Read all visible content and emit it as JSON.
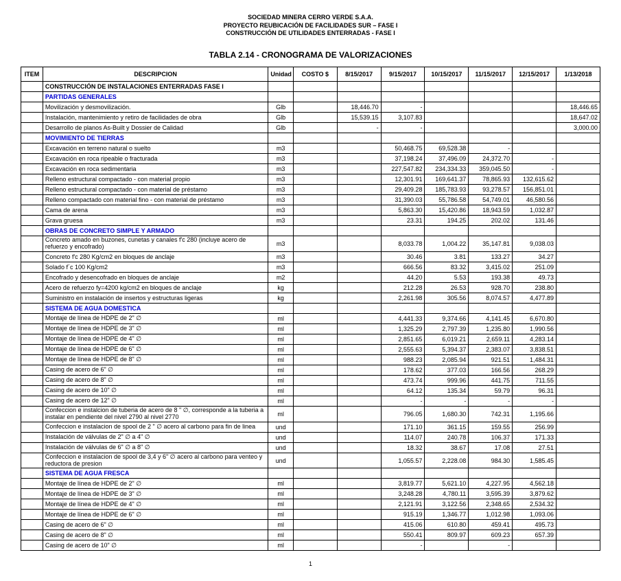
{
  "header": {
    "line1": "SOCIEDAD MINERA CERRO VERDE S.A.A.",
    "line2": "PROYECTO REUBICACIÓN DE FACILIDADES SUR – FASE I",
    "line3": "CONSTRUCCIÓN DE UTILIDADES ENTERRADAS - FASE I"
  },
  "title": "TABLA 2.14 - CRONOGRAMA DE VALORIZACIONES",
  "columns": {
    "item": "ITEM",
    "desc": "DESCRIPCION",
    "unit": "Unidad",
    "cost": "COSTO $",
    "d1": "8/15/2017",
    "d2": "9/15/2017",
    "d3": "10/15/2017",
    "d4": "11/15/2017",
    "d5": "12/15/2017",
    "d6": "1/13/2018"
  },
  "style": {
    "section_color": "#0000d0",
    "border_color": "#000000",
    "font_size_body": 9,
    "font_size_title": 12
  },
  "rows": [
    {
      "type": "bold",
      "desc": "CONSTRUCCIÓN DE INSTALACIONES ENTERRADAS FASE I"
    },
    {
      "type": "section",
      "desc": "PARTIDAS GENERALES"
    },
    {
      "desc": "Movilización y desmovilización.",
      "unit": "Glb",
      "d1": "18,446.70",
      "d2": "-",
      "d6": "18,446.65"
    },
    {
      "desc": "Instalación, mantenimiento y retiro de facilidades de obra",
      "unit": "Glb",
      "d1": "15,539.15",
      "d2": "3,107.83",
      "d6": "18,647.02"
    },
    {
      "desc": "Desarrollo de planos As-Built y Dossier de Calidad",
      "unit": "Glb",
      "d1": "-",
      "d2": "-",
      "d6": "3,000.00"
    },
    {
      "type": "section",
      "desc": "MOVIMIENTO DE TIERRAS"
    },
    {
      "desc": "Excavación en terreno natural o suelto",
      "unit": "m3",
      "d2": "50,468.75",
      "d3": "69,528.38",
      "d4": "-"
    },
    {
      "desc": "Excavación en roca ripeable o fracturada",
      "unit": "m3",
      "d2": "37,198.24",
      "d3": "37,496.09",
      "d4": "24,372.70",
      "d5": "-"
    },
    {
      "desc": "Excavación en roca sedimentaria",
      "unit": "m3",
      "d2": "227,547.82",
      "d3": "234,334.33",
      "d4": "359,045.50",
      "d5": "-"
    },
    {
      "desc": "Relleno estructural compactado - con material propio",
      "unit": "m3",
      "d2": "12,301.91",
      "d3": "169,641.37",
      "d4": "78,865.93",
      "d5": "132,615.62"
    },
    {
      "desc": "Relleno estructural compactado - con material de préstamo",
      "unit": "m3",
      "d2": "29,409.28",
      "d3": "185,783.93",
      "d4": "93,278.57",
      "d5": "156,851.01"
    },
    {
      "desc": "Relleno compactado con material fino - con material de préstamo",
      "unit": "m3",
      "d2": "31,390.03",
      "d3": "55,786.58",
      "d4": "54,749.01",
      "d5": "46,580.56"
    },
    {
      "desc": "Cama de arena",
      "unit": "m3",
      "d2": "5,863.30",
      "d3": "15,420.86",
      "d4": "18,943.59",
      "d5": "1,032.87"
    },
    {
      "desc": "Grava gruesa",
      "unit": "m3",
      "d2": "23.31",
      "d3": "194.25",
      "d4": "202.02",
      "d5": "131.46"
    },
    {
      "type": "section",
      "desc": "OBRAS DE CONCRETO SIMPLE Y ARMADO"
    },
    {
      "desc": "Concreto amado en buzones, cunetas y canales f'c 280 (incluye acero de refuerzo y encofrado)",
      "unit": "m3",
      "wrap": true,
      "d2": "8,033.78",
      "d3": "1,004.22",
      "d4": "35,147.81",
      "d5": "9,038.03"
    },
    {
      "desc": "Concreto  f'c 280 Kg/cm2 en bloques de anclaje",
      "unit": "m3",
      "d2": "30.46",
      "d3": "3.81",
      "d4": "133.27",
      "d5": "34.27"
    },
    {
      "desc": "Solado  f´c 100 Kg/cm2",
      "unit": "m3",
      "d2": "666.56",
      "d3": "83.32",
      "d4": "3,415.02",
      "d5": "251.09"
    },
    {
      "desc": "Encofrado y desencofrado en bloques de anclaje",
      "unit": "m2",
      "d2": "44.20",
      "d3": "5.53",
      "d4": "193.38",
      "d5": "49.73"
    },
    {
      "desc": "Acero de refuerzo fy=4200 kg/cm2 en bloques de anclaje",
      "unit": "kg",
      "d2": "212.28",
      "d3": "26.53",
      "d4": "928.70",
      "d5": "238.80"
    },
    {
      "desc": "Suministro en instalación de insertos y estructuras ligeras",
      "unit": "kg",
      "d2": "2,261.98",
      "d3": "305.56",
      "d4": "8,074.57",
      "d5": "4,477.89"
    },
    {
      "type": "section",
      "desc": "SISTEMA DE AGUA DOMESTICA"
    },
    {
      "desc": "Montaje de línea de HDPE de 2\" ∅",
      "unit": "ml",
      "d2": "4,441.33",
      "d3": "9,374.66",
      "d4": "4,141.45",
      "d5": "6,670.80"
    },
    {
      "desc": "Montaje de línea de HDPE de 3\" ∅",
      "unit": "ml",
      "d2": "1,325.29",
      "d3": "2,797.39",
      "d4": "1,235.80",
      "d5": "1,990.56"
    },
    {
      "desc": "Montaje de línea de HDPE de 4\" ∅",
      "unit": "ml",
      "d2": "2,851.65",
      "d3": "6,019.21",
      "d4": "2,659.11",
      "d5": "4,283.14"
    },
    {
      "desc": "Montaje de línea de HDPE de 6\" ∅",
      "unit": "ml",
      "d2": "2,555.63",
      "d3": "5,394.37",
      "d4": "2,383.07",
      "d5": "3,838.51"
    },
    {
      "desc": "Montaje de línea de HDPE de 8\" ∅",
      "unit": "ml",
      "d2": "988.23",
      "d3": "2,085.94",
      "d4": "921.51",
      "d5": "1,484.31"
    },
    {
      "desc": "Casing de acero de 6\" ∅",
      "unit": "ml",
      "d2": "178.62",
      "d3": "377.03",
      "d4": "166.56",
      "d5": "268.29"
    },
    {
      "desc": "Casing de acero de 8\" ∅",
      "unit": "ml",
      "d2": "473.74",
      "d3": "999.96",
      "d4": "441.75",
      "d5": "711.55"
    },
    {
      "desc": "Casing de acero de 10\" ∅",
      "unit": "ml",
      "d2": "64.12",
      "d3": "135.34",
      "d4": "59.79",
      "d5": "96.31"
    },
    {
      "desc": "Casing de acero de 12\" ∅",
      "unit": "ml",
      "d2": "-",
      "d3": "-",
      "d4": "-",
      "d5": "-"
    },
    {
      "desc": "Confeccion e instalcion de tuberia de acero de 8 \" ∅, corresponde a la tuberia a instalar en pendiente del nivel 2790 al nivel 2770",
      "unit": "ml",
      "wrap": true,
      "d2": "796.05",
      "d3": "1,680.30",
      "d4": "742.31",
      "d5": "1,195.66"
    },
    {
      "desc": "Confeccion e instalacion de spool de 2 \" ∅ acero al carbono para fin de linea",
      "unit": "und",
      "d2": "171.10",
      "d3": "361.15",
      "d4": "159.55",
      "d5": "256.99"
    },
    {
      "desc": "Instalación de válvulas de 2\" ∅ a 4\" ∅",
      "unit": "und",
      "d2": "114.07",
      "d3": "240.78",
      "d4": "106.37",
      "d5": "171.33"
    },
    {
      "desc": "Instalación de válvulas de 6\" ∅ a 8\" ∅",
      "unit": "und",
      "d2": "18.32",
      "d3": "38.67",
      "d4": "17.08",
      "d5": "27.51"
    },
    {
      "desc": "Confeccion e instalacion de spool de 3,4 y 6\" ∅ acero al carbono para venteo y reductora de presion",
      "unit": "und",
      "wrap": true,
      "d2": "1,055.57",
      "d3": "2,228.08",
      "d4": "984.30",
      "d5": "1,585.45"
    },
    {
      "type": "section",
      "desc": "SISTEMA DE AGUA FRESCA"
    },
    {
      "desc": "Montaje de línea de HDPE de 2\" ∅",
      "unit": "ml",
      "d2": "3,819.77",
      "d3": "5,621.10",
      "d4": "4,227.95",
      "d5": "4,562.18"
    },
    {
      "desc": "Montaje de línea de HDPE de 3\" ∅",
      "unit": "ml",
      "d2": "3,248.28",
      "d3": "4,780.11",
      "d4": "3,595.39",
      "d5": "3,879.62"
    },
    {
      "desc": "Montaje de línea de HDPE de 4\" ∅",
      "unit": "ml",
      "d2": "2,121.91",
      "d3": "3,122.56",
      "d4": "2,348.65",
      "d5": "2,534.32"
    },
    {
      "desc": "Montaje de línea de HDPE de 6\" ∅",
      "unit": "ml",
      "d2": "915.19",
      "d3": "1,346.77",
      "d4": "1,012.98",
      "d5": "1,093.06"
    },
    {
      "desc": "Casing de acero de 6\" ∅",
      "unit": "ml",
      "d2": "415.06",
      "d3": "610.80",
      "d4": "459.41",
      "d5": "495.73"
    },
    {
      "desc": "Casing de acero de 8\" ∅",
      "unit": "ml",
      "d2": "550.41",
      "d3": "809.97",
      "d4": "609.23",
      "d5": "657.39"
    },
    {
      "desc": "Casing de acero de 10\" ∅",
      "unit": "ml",
      "d2": "-",
      "d3": "",
      "d4": "-",
      "d5": ""
    }
  ],
  "page_number": "1"
}
